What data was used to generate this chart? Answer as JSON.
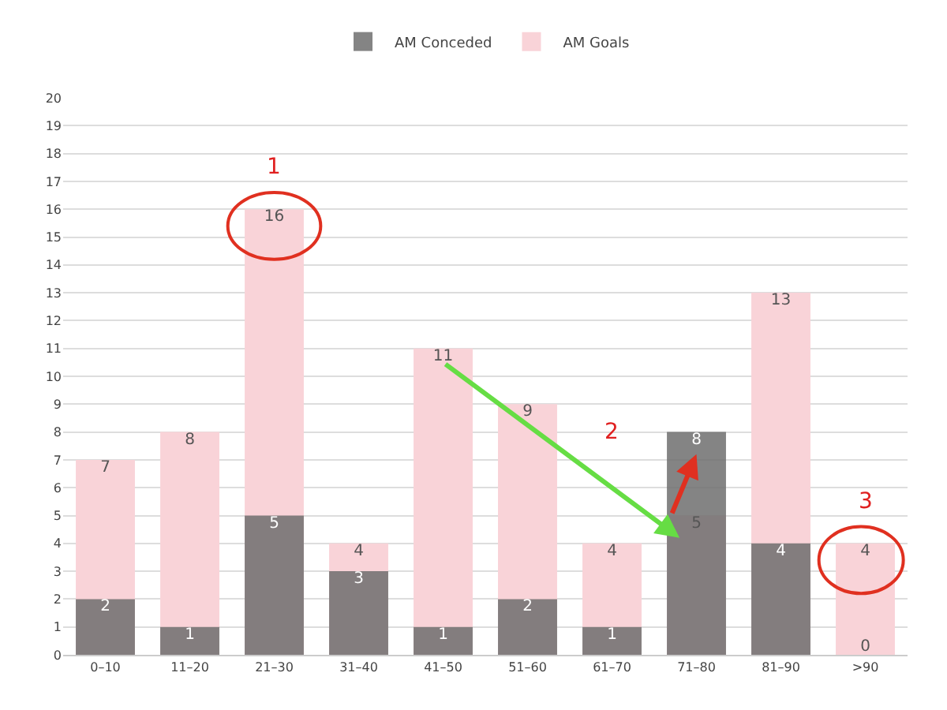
{
  "chart_data": {
    "type": "bar",
    "categories": [
      "0–10",
      "11–20",
      "21–30",
      "31–40",
      "41–50",
      "51–60",
      "61–70",
      "71–80",
      "81–90",
      ">90"
    ],
    "series": [
      {
        "name": "AM Conceded",
        "color": "#6f6f6f",
        "values": [
          2,
          1,
          5,
          3,
          1,
          2,
          1,
          8,
          4,
          0
        ]
      },
      {
        "name": "AM Goals",
        "color": "#f9d3d8",
        "values": [
          7,
          8,
          16,
          4,
          11,
          9,
          4,
          5,
          13,
          4
        ]
      }
    ],
    "ylim": [
      0,
      20
    ],
    "yticks": [
      0,
      1,
      2,
      3,
      4,
      5,
      6,
      7,
      8,
      9,
      10,
      11,
      12,
      13,
      14,
      15,
      16,
      17,
      18,
      19,
      20
    ],
    "grid": "y",
    "legend": "top",
    "data_labels": true,
    "annotations": [
      "1",
      "2",
      "3"
    ]
  }
}
